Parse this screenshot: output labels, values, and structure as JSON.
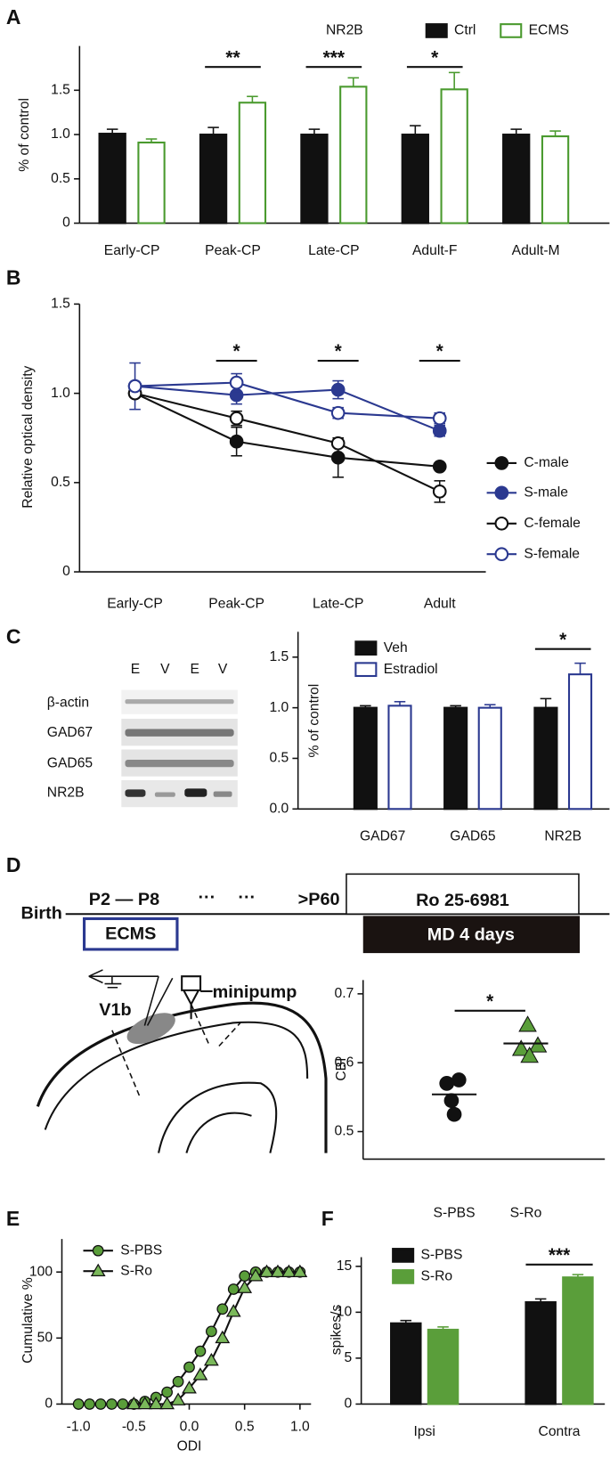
{
  "panel_labels": [
    "A",
    "B",
    "C",
    "D",
    "E",
    "F"
  ],
  "chart_data": [
    {
      "type": "bar",
      "title": "NR2B",
      "ylabel": "% of control",
      "categories": [
        "Early-CP",
        "Peak-CP",
        "Late-CP",
        "Adult-F",
        "Adult-M"
      ],
      "series": [
        {
          "name": "Ctrl",
          "color": "#111111",
          "filled": true,
          "values": [
            1.01,
            1.0,
            1.0,
            1.0,
            1.0
          ],
          "errors": [
            0.05,
            0.08,
            0.06,
            0.1,
            0.06
          ]
        },
        {
          "name": "ECMS",
          "color": "#4a9a2e",
          "filled": false,
          "values": [
            0.91,
            1.36,
            1.54,
            1.51,
            0.98
          ],
          "errors": [
            0.04,
            0.07,
            0.1,
            0.19,
            0.06
          ]
        }
      ],
      "ylim": [
        0,
        2
      ],
      "yticks": [
        0,
        0.5,
        {
          "value": 1,
          "label": "1.0"
        },
        1.5
      ],
      "annotations": [
        "**",
        "***",
        "*"
      ],
      "legend": "upper right"
    },
    {
      "type": "line",
      "ylabel": "Relative optical density",
      "categories": [
        "Early-CP",
        "Peak-CP",
        "Late-CP",
        "Adult"
      ],
      "series": [
        {
          "name": "C-male",
          "color": "#111111",
          "filled": true,
          "values": [
            1.0,
            0.73,
            0.64,
            0.59
          ],
          "errors": [
            0,
            0.08,
            0.11,
            0
          ]
        },
        {
          "name": "S-male",
          "color": "#2b3990",
          "filled": true,
          "values": [
            1.04,
            0.99,
            1.02,
            0.79
          ],
          "errors": [
            0.13,
            0.05,
            0.05,
            0.03
          ]
        },
        {
          "name": "C-female",
          "color": "#111111",
          "filled": false,
          "values": [
            1.0,
            0.86,
            0.72,
            0.45
          ],
          "errors": [
            0,
            0.04,
            0,
            0.06
          ]
        },
        {
          "name": "S-female",
          "color": "#2b3990",
          "filled": false,
          "values": [
            1.04,
            1.06,
            0.89,
            0.86
          ],
          "errors": [
            0,
            0.05,
            0.03,
            0.03
          ]
        }
      ],
      "ylim": [
        0,
        1.5
      ],
      "yticks": [
        0,
        0.5,
        {
          "value": 1,
          "label": "1.0"
        },
        1.5
      ],
      "annotations": [
        "*",
        "*",
        "*"
      ],
      "legend": "right"
    },
    {
      "type": "bar",
      "ylabel": "% of control",
      "categories": [
        "GAD67",
        "GAD65",
        "NR2B"
      ],
      "series": [
        {
          "name": "Veh",
          "color": "#111111",
          "filled": true,
          "values": [
            1.0,
            1.0,
            1.0
          ],
          "errors": [
            0.02,
            0.02,
            0.09
          ]
        },
        {
          "name": "Estradiol",
          "color": "#2b3990",
          "filled": false,
          "values": [
            1.02,
            1.0,
            1.33
          ],
          "errors": [
            0.04,
            0.03,
            0.11
          ]
        }
      ],
      "ylim": [
        0,
        1.75
      ],
      "yticks": [
        {
          "value": 0,
          "label": "0.0"
        },
        0.5,
        {
          "value": 1,
          "label": "1.0"
        },
        1.5
      ],
      "annotations": [
        "*"
      ],
      "legend": "upper left"
    },
    {
      "type": "scatter",
      "ylabel": "CBI",
      "categories": [
        "S-PBS",
        "S-Ro"
      ],
      "groups": [
        {
          "marker": "circle",
          "color": "#111111",
          "values": [
            0.575,
            0.57,
            0.545,
            0.525
          ],
          "mean": 0.554
        },
        {
          "marker": "triangle",
          "color": "#5a9e3a",
          "values": [
            0.655,
            0.625,
            0.62,
            0.61
          ],
          "mean": 0.628
        }
      ],
      "ylim": [
        0.46,
        0.72
      ],
      "yticks": [
        0.5,
        0.6,
        0.7
      ],
      "annotations": [
        "*"
      ]
    },
    {
      "type": "line",
      "xlabel": "ODI",
      "ylabel": "Cumulative %",
      "x": [
        -1.0,
        -0.9,
        -0.8,
        -0.7,
        -0.6,
        -0.5,
        -0.4,
        -0.3,
        -0.2,
        -0.1,
        0,
        0.1,
        0.2,
        0.3,
        0.4,
        0.5,
        0.6,
        0.7,
        0.8,
        0.9,
        1.0
      ],
      "series": [
        {
          "name": "S-PBS",
          "color": "#111111",
          "marker": "circle",
          "marker_color": "#5a9e3a",
          "values": [
            0,
            0,
            0,
            0,
            0,
            0,
            2,
            5,
            9,
            17,
            28,
            40,
            55,
            72,
            87,
            97,
            100,
            100,
            100,
            100,
            100
          ]
        },
        {
          "name": "S-Ro",
          "color": "#111111",
          "marker": "triangle",
          "marker_color": "#7ab85a",
          "values": [
            null,
            null,
            null,
            null,
            null,
            0,
            0,
            0,
            0,
            3,
            12,
            22,
            33,
            50,
            70,
            88,
            97,
            100,
            100,
            100,
            100
          ]
        }
      ],
      "xlim": [
        -1.15,
        1.1
      ],
      "xticks": [
        {
          "value": -1,
          "label": "-1.0"
        },
        {
          "value": -0.5,
          "label": "-0.5"
        },
        {
          "value": 0,
          "label": "0.0"
        },
        0.5,
        {
          "value": 1,
          "label": "1.0"
        }
      ],
      "ylim": [
        0,
        125
      ],
      "yticks": [
        0,
        50,
        100
      ],
      "legend": "upper left"
    },
    {
      "type": "bar",
      "ylabel": "spikes/s",
      "categories": [
        "Ipsi",
        "Contra"
      ],
      "series": [
        {
          "name": "S-PBS",
          "color": "#111111",
          "filled": true,
          "values": [
            8.8,
            11.1
          ],
          "errors": [
            0.3,
            0.35
          ]
        },
        {
          "name": "S-Ro",
          "color": "#5a9e3a",
          "filled": true,
          "values": [
            8.1,
            13.8
          ],
          "errors": [
            0.3,
            0.3
          ]
        }
      ],
      "ylim": [
        0,
        16
      ],
      "yticks": [
        0,
        5,
        10,
        15
      ],
      "annotations": [
        "***"
      ],
      "legend": "upper left"
    }
  ],
  "blot": {
    "lanes": [
      "E",
      "V",
      "E",
      "V"
    ],
    "rows": [
      "β-actin",
      "GAD67",
      "GAD65",
      "NR2B"
    ]
  },
  "timeline": {
    "start": "Birth",
    "period": "P2 — P8",
    "dots": [
      "···",
      "···"
    ],
    "adult": ">P60",
    "drug": "Ro 25-6981",
    "treatment": "ECMS",
    "md": "MD 4 days"
  },
  "diagram": {
    "area": "V1b",
    "device": "minipump"
  }
}
